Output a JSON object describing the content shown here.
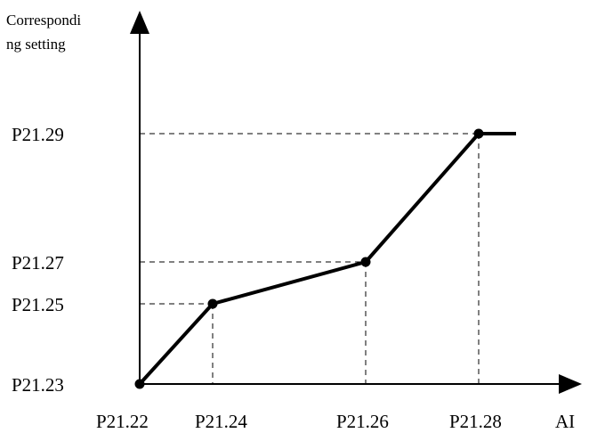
{
  "diagram": {
    "y_axis_label_lines": [
      "Correspondi",
      "ng setting"
    ],
    "x_axis_label": "AI",
    "x_ticks": [
      "P21.22",
      "P21.24",
      "P21.26",
      "P21.28"
    ],
    "y_ticks": [
      "P21.23",
      "P21.25",
      "P21.27",
      "P21.29"
    ],
    "line_color": "#000000",
    "points": [
      {
        "x": "P21.22",
        "y": "P21.23"
      },
      {
        "x": "P21.24",
        "y": "P21.25"
      },
      {
        "x": "P21.26",
        "y": "P21.27"
      },
      {
        "x": "P21.28",
        "y": "P21.29"
      }
    ]
  }
}
